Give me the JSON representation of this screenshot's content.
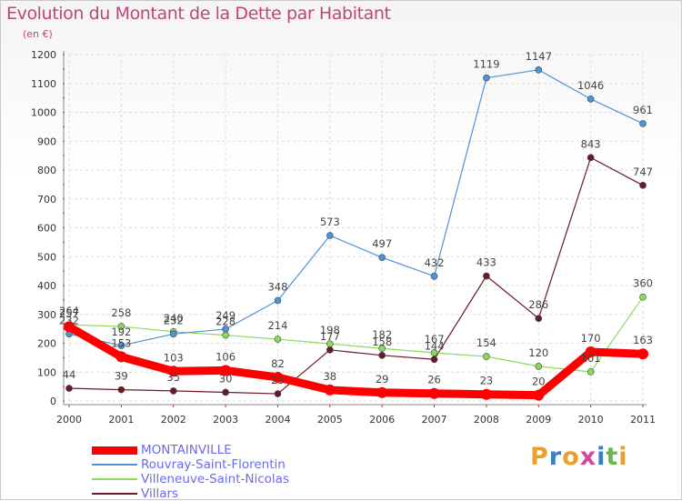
{
  "title": "Evolution du Montant de la Dette par Habitant",
  "subtitle": "(en €)",
  "logo": {
    "chars": [
      "P",
      "r",
      "o",
      "x",
      "i",
      "t",
      "i"
    ],
    "colors": [
      "#e8a030",
      "#3a7ec8",
      "#e8a030",
      "#d04a9a",
      "#3a7ec8",
      "#6bb84a",
      "#e8a030"
    ]
  },
  "chart_data": {
    "type": "line",
    "title": "Evolution du Montant de la Dette par Habitant",
    "ylabel": "(en €)",
    "xlabel": "",
    "grid": true,
    "ylim": [
      0,
      1200
    ],
    "yticks": [
      "0",
      "100",
      "200",
      "300",
      "400",
      "500",
      "600",
      "700",
      "800",
      "900",
      "1000",
      "1100",
      "1200"
    ],
    "categories": [
      "2000",
      "2001",
      "2002",
      "2003",
      "2004",
      "2005",
      "2006",
      "2007",
      "2008",
      "2009",
      "2010",
      "2011"
    ],
    "series": [
      {
        "name": "Villars",
        "color": "#6b1a24",
        "width": 1.2,
        "values": [
          44,
          39,
          35,
          30,
          25,
          177,
          158,
          144,
          433,
          286,
          843,
          747
        ],
        "labels": [
          "44",
          "39",
          "35",
          "30",
          "25",
          "177",
          "158",
          "144",
          "433",
          "286",
          "843",
          "747"
        ]
      },
      {
        "name": "Villeneuve-Saint-Nicolas",
        "color": "#8cd95a",
        "width": 1.2,
        "values": [
          264,
          258,
          240,
          228,
          214,
          198,
          182,
          167,
          154,
          120,
          101,
          360
        ],
        "labels": [
          "264",
          "258",
          "240",
          "228",
          "214",
          "198",
          "182",
          "167",
          "154",
          "120",
          "101",
          "360"
        ]
      },
      {
        "name": "Rouvray-Saint-Florentin",
        "color": "#4d93d9",
        "width": 1.2,
        "values": [
          232,
          192,
          232,
          249,
          348,
          573,
          497,
          432,
          1119,
          1147,
          1046,
          961
        ],
        "labels": [
          "232",
          "192",
          "232",
          "249",
          "348",
          "573",
          "497",
          "432",
          "1119",
          "1147",
          "1046",
          "961"
        ]
      },
      {
        "name": "MONTAINVILLE",
        "color": "#ff0000",
        "width": 9,
        "values": [
          257,
          153,
          103,
          106,
          82,
          38,
          29,
          26,
          23,
          20,
          170,
          163
        ],
        "labels": [
          "257",
          "153",
          "103",
          "106",
          "82",
          "38",
          "29",
          "26",
          "23",
          "20",
          "170",
          "163"
        ]
      }
    ],
    "legend": [
      "MONTAINVILLE",
      "Rouvray-Saint-Florentin",
      "Villeneuve-Saint-Nicolas",
      "Villars"
    ]
  }
}
